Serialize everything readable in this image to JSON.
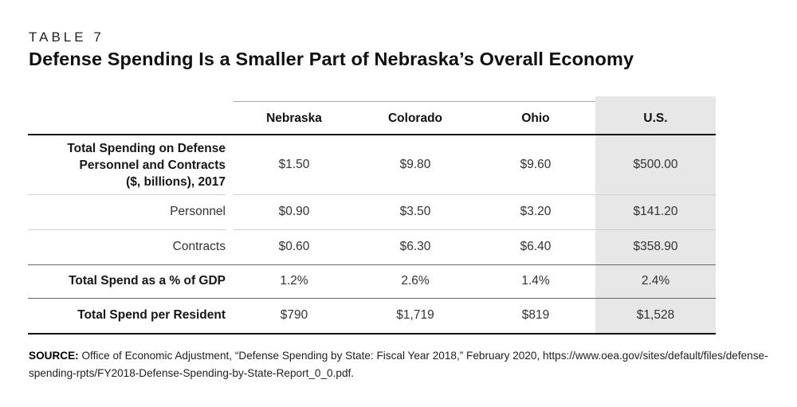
{
  "page": {
    "kicker": "TABLE 7",
    "title": "Defense Spending Is a Smaller Part of Nebraska’s Overall Economy"
  },
  "chart_data": {
    "type": "table",
    "title": "Defense Spending Is a Smaller Part of Nebraska’s Overall Economy",
    "table_label": "TABLE 7",
    "columns": [
      "Nebraska",
      "Colorado",
      "Ohio",
      "U.S."
    ],
    "highlighted_column": "U.S.",
    "highlight_color": "#e7e7e7",
    "rows": [
      {
        "label": "Total Spending on Defense Personnel and Contracts ($, billions), 2017",
        "label_lines": [
          "Total Spending on Defense",
          "Personnel and Contracts",
          "($, billions), 2017"
        ],
        "bold": true,
        "values": [
          "$1.50",
          "$9.80",
          "$9.60",
          "$500.00"
        ]
      },
      {
        "label": "Personnel",
        "bold": false,
        "values": [
          "$0.90",
          "$3.50",
          "$3.20",
          "$141.20"
        ]
      },
      {
        "label": "Contracts",
        "bold": false,
        "values": [
          "$0.60",
          "$6.30",
          "$6.40",
          "$358.90"
        ]
      },
      {
        "label": "Total Spend as a % of GDP",
        "bold": true,
        "values": [
          "1.2%",
          "2.6%",
          "1.4%",
          "2.4%"
        ]
      },
      {
        "label": "Total Spend per Resident",
        "bold": true,
        "values": [
          "$790",
          "$1,719",
          "$819",
          "$1,528"
        ]
      }
    ],
    "source": {
      "prefix": "SOURCE:",
      "text": " Office of Economic Adjustment, “Defense Spending by State: Fiscal Year 2018,” February 2020, https://www.oea.gov/sites/default/files/defense-spending-rpts/FY2018-Defense-Spending-by-State-Report_0_0.pdf."
    }
  }
}
